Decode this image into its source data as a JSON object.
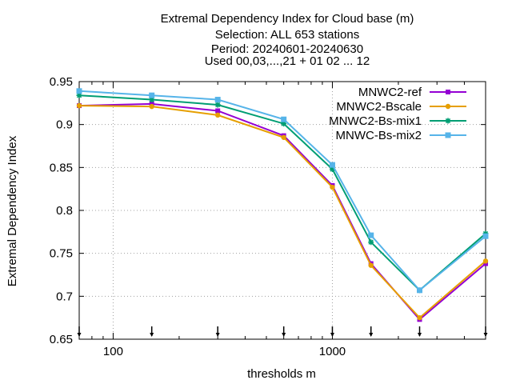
{
  "chart_data": {
    "type": "line",
    "title_lines": [
      "Extremal Dependency Index  for Cloud base (m)",
      "Selection: ALL    653 stations",
      "Period: 20240601-20240630",
      "Used 00,03,...,21 + 01 02 ... 12"
    ],
    "xlabel": "thresholds m",
    "ylabel": "Extremal Dependency Index",
    "x_scale": "log",
    "xlim": [
      70,
      5000
    ],
    "ylim": [
      0.65,
      0.95
    ],
    "x_tick_values": [
      100,
      1000
    ],
    "x_tick_labels": [
      "100",
      "1000"
    ],
    "y_tick_values": [
      0.65,
      0.7,
      0.75,
      0.8,
      0.85,
      0.9,
      0.95
    ],
    "y_tick_labels": [
      "0.65",
      "0.7",
      "0.75",
      "0.8",
      "0.85",
      "0.9",
      "0.95"
    ],
    "grid": true,
    "legend_position": "top-right",
    "threshold_markers": [
      70,
      150,
      300,
      600,
      1000,
      1500,
      2500,
      5000
    ],
    "x": [
      70,
      150,
      300,
      600,
      1000,
      1500,
      2500,
      5000
    ],
    "series": [
      {
        "name": "MNWC2-ref",
        "color": "#9400d3",
        "marker": "filled-square",
        "values": [
          0.922,
          0.924,
          0.916,
          0.887,
          0.829,
          0.738,
          0.673,
          0.738
        ]
      },
      {
        "name": "MNWC2-Bscale",
        "color": "#e69f00",
        "marker": "filled-circle",
        "values": [
          0.922,
          0.921,
          0.911,
          0.885,
          0.827,
          0.736,
          0.675,
          0.741
        ]
      },
      {
        "name": "MNWC2-Bs-mix1",
        "color": "#009e73",
        "marker": "star",
        "values": [
          0.934,
          0.929,
          0.923,
          0.901,
          0.848,
          0.763,
          0.707,
          0.773
        ]
      },
      {
        "name": "MNWC-Bs-mix2",
        "color": "#56b4e9",
        "marker": "box",
        "values": [
          0.939,
          0.934,
          0.929,
          0.906,
          0.853,
          0.771,
          0.707,
          0.77
        ]
      }
    ]
  }
}
